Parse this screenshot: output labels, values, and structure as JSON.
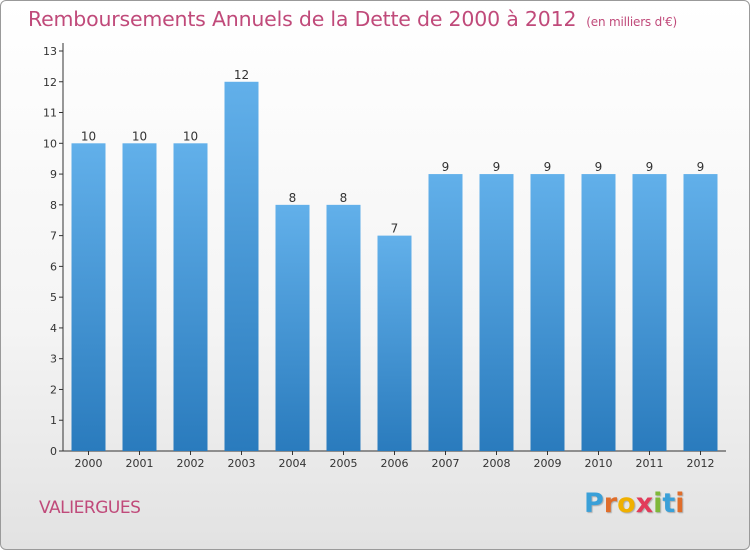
{
  "title": "Remboursements Annuels de la Dette de 2000 à 2012",
  "unit": "(en milliers d'€)",
  "commune": "VALIERGUES",
  "logo": {
    "text": "Proxiti",
    "colors": [
      "#3aa0d8",
      "#e06d2a",
      "#f0b000",
      "#e23b5a",
      "#7fb83a",
      "#3aa0d8",
      "#e06d2a"
    ]
  },
  "colors": {
    "bar_top": "#62b0ea",
    "bar_bottom": "#2a7bbd",
    "title": "#c04a7a",
    "axis": "#333333"
  },
  "chart_data": {
    "type": "bar",
    "title": "Remboursements Annuels de la Dette de 2000 à 2012",
    "xlabel": "",
    "ylabel": "",
    "categories": [
      "2000",
      "2001",
      "2002",
      "2003",
      "2004",
      "2005",
      "2006",
      "2007",
      "2008",
      "2009",
      "2010",
      "2011",
      "2012"
    ],
    "values": [
      10,
      10,
      10,
      12,
      8,
      8,
      7,
      9,
      9,
      9,
      9,
      9,
      9
    ],
    "data_labels": [
      "10",
      "10",
      "10",
      "12",
      "8",
      "8",
      "7",
      "9",
      "9",
      "9",
      "9",
      "9",
      "9"
    ],
    "y_ticks": [
      0,
      1,
      2,
      3,
      4,
      5,
      6,
      7,
      8,
      9,
      10,
      11,
      12,
      13
    ],
    "ylim": [
      0,
      13
    ],
    "grid": false,
    "legend": "none"
  }
}
